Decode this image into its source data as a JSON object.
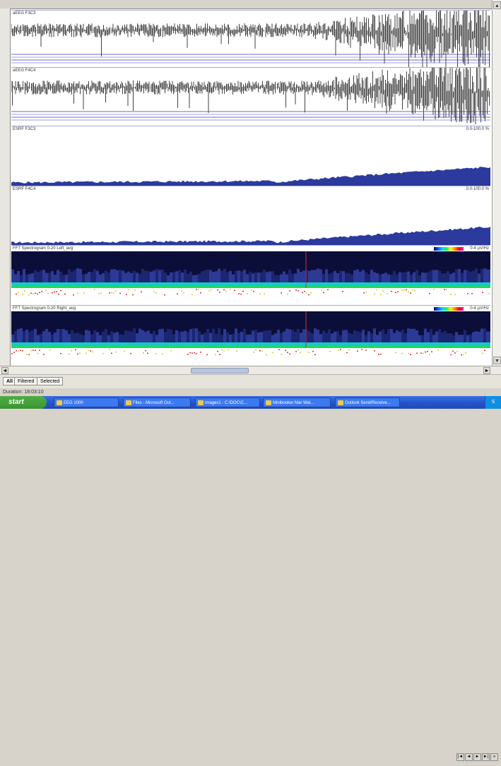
{
  "panels": [
    {
      "label": "aEEG F3C3",
      "range": ""
    },
    {
      "label": "aEEG F4C4",
      "range": ""
    },
    {
      "label": "ESRF F3C3",
      "range": "0.0-100.0 %"
    },
    {
      "label": "ESRF F4C4",
      "range": "0.0-100.0 %"
    },
    {
      "label": "FFT Spectrogram 0-20 Left_avg",
      "range": "0-4 µV/Hz"
    },
    {
      "label": "FFT Spectrogram 0-20 Right_avg",
      "range": "0-4 µV/Hz"
    }
  ],
  "tabs": {
    "all": "All",
    "filtered": "Filtered",
    "selected": "Selected"
  },
  "status": {
    "duration": "Duration: 18:03:10"
  },
  "taskbar": {
    "start": "start",
    "items": [
      "EEG 1000",
      "Files - Microsoft Out...",
      "images1 - C:\\DOC\\C...",
      "Minibooker Mar Wal...",
      "Outlook Send/Receive..."
    ],
    "tray": "S"
  },
  "colors": {
    "accent_blue": "#2b3a9c",
    "trace": "#111111",
    "taskbar": "#2453c9",
    "start": "#3c9532"
  }
}
